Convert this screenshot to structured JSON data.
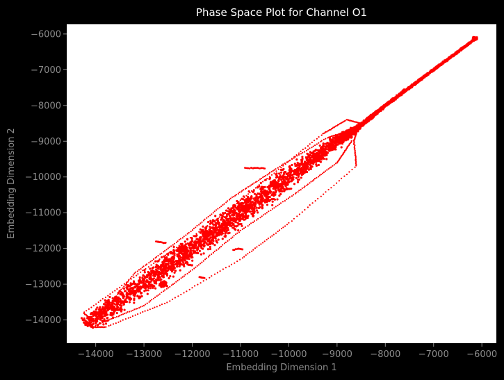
{
  "chart_data": {
    "type": "scatter",
    "title": "Phase Space Plot for Channel O1",
    "xlabel": "Embedding Dimension 1",
    "ylabel": "Embedding Dimension 2",
    "xlim": [
      -14600,
      -5700
    ],
    "ylim": [
      -14650,
      -5730
    ],
    "xticks": [
      -14000,
      -13000,
      -12000,
      -11000,
      -10000,
      -9000,
      -8000,
      -7000,
      -6000
    ],
    "yticks": [
      -14000,
      -13000,
      -12000,
      -11000,
      -10000,
      -9000,
      -8000,
      -7000,
      -6000
    ],
    "xtick_labels": [
      "−14000",
      "−13000",
      "−12000",
      "−11000",
      "−10000",
      "−9000",
      "−8000",
      "−7000",
      "−6000"
    ],
    "ytick_labels": [
      "−14000",
      "−13000",
      "−12000",
      "−11000",
      "−10000",
      "−9000",
      "−8000",
      "−7000",
      "−6000"
    ],
    "grid": false,
    "band": {
      "centerline": [
        [
          -14200,
          -14150
        ],
        [
          -13000,
          -13000
        ],
        [
          -12000,
          -12000
        ],
        [
          -11000,
          -11000
        ],
        [
          -10000,
          -10000
        ],
        [
          -9000,
          -9000
        ],
        [
          -8500,
          -8550
        ],
        [
          -8000,
          -8000
        ],
        [
          -7000,
          -7000
        ],
        [
          -6100,
          -6100
        ]
      ],
      "halfwidth": [
        260,
        320,
        360,
        380,
        330,
        200,
        60,
        40,
        30,
        25
      ]
    },
    "clusters": [
      {
        "x": -12200,
        "y": -12000,
        "r": 120
      },
      {
        "x": -10900,
        "y": -10900,
        "r": 110
      },
      {
        "x": -12600,
        "y": -13000,
        "r": 100
      },
      {
        "x": -9400,
        "y": -9450,
        "r": 90
      },
      {
        "x": -6150,
        "y": -6130,
        "r": 50
      },
      {
        "x": -10300,
        "y": -10200,
        "r": 100
      },
      {
        "x": -11700,
        "y": -11600,
        "r": 110
      }
    ],
    "orbits": [
      [
        [
          -14050,
          -14050
        ],
        [
          -14250,
          -13800
        ],
        [
          -13000,
          -12600
        ],
        [
          -11500,
          -11200
        ],
        [
          -10500,
          -10100
        ],
        [
          -9300,
          -8800
        ],
        [
          -8800,
          -8400
        ],
        [
          -8500,
          -8500
        ]
      ],
      [
        [
          -14100,
          -14200
        ],
        [
          -13800,
          -14200
        ],
        [
          -12500,
          -13500
        ],
        [
          -11000,
          -12300
        ],
        [
          -10000,
          -11300
        ],
        [
          -8600,
          -9700
        ],
        [
          -8650,
          -9000
        ],
        [
          -8550,
          -8550
        ]
      ],
      [
        [
          -14000,
          -14050
        ],
        [
          -13200,
          -12700
        ],
        [
          -12200,
          -11700
        ],
        [
          -11200,
          -10600
        ],
        [
          -10300,
          -9800
        ],
        [
          -9200,
          -8900
        ],
        [
          -8600,
          -8650
        ]
      ],
      [
        [
          -14000,
          -14150
        ],
        [
          -13000,
          -13600
        ],
        [
          -12000,
          -12600
        ],
        [
          -11000,
          -11500
        ],
        [
          -9900,
          -10500
        ],
        [
          -9000,
          -9600
        ],
        [
          -8700,
          -9000
        ]
      ]
    ],
    "features": [
      {
        "path": [
          [
            -10900,
            -9750
          ],
          [
            -10700,
            -9750
          ],
          [
            -10500,
            -9760
          ]
        ]
      },
      {
        "path": [
          [
            -12750,
            -11800
          ],
          [
            -12650,
            -11830
          ],
          [
            -12550,
            -11850
          ]
        ]
      },
      {
        "path": [
          [
            -11150,
            -12050
          ],
          [
            -11050,
            -12000
          ],
          [
            -10950,
            -12030
          ]
        ]
      },
      {
        "path": [
          [
            -11850,
            -12800
          ],
          [
            -11750,
            -12830
          ]
        ]
      },
      {
        "path": [
          [
            -12100,
            -12450
          ],
          [
            -12000,
            -12470
          ]
        ]
      },
      {
        "path": [
          [
            -12700,
            -12700
          ],
          [
            -12650,
            -12720
          ]
        ]
      },
      {
        "path": [
          [
            -10100,
            -10350
          ],
          [
            -9950,
            -10330
          ]
        ]
      },
      {
        "path": [
          [
            -11050,
            -10750
          ],
          [
            -10950,
            -10730
          ]
        ]
      },
      {
        "path": [
          [
            -11100,
            -10800
          ],
          [
            -11200,
            -10900
          ],
          [
            -11250,
            -11050
          ]
        ]
      },
      {
        "path": [
          [
            -7650,
            -7600
          ],
          [
            -7600,
            -7550
          ]
        ]
      }
    ],
    "color": "#ff0000"
  }
}
